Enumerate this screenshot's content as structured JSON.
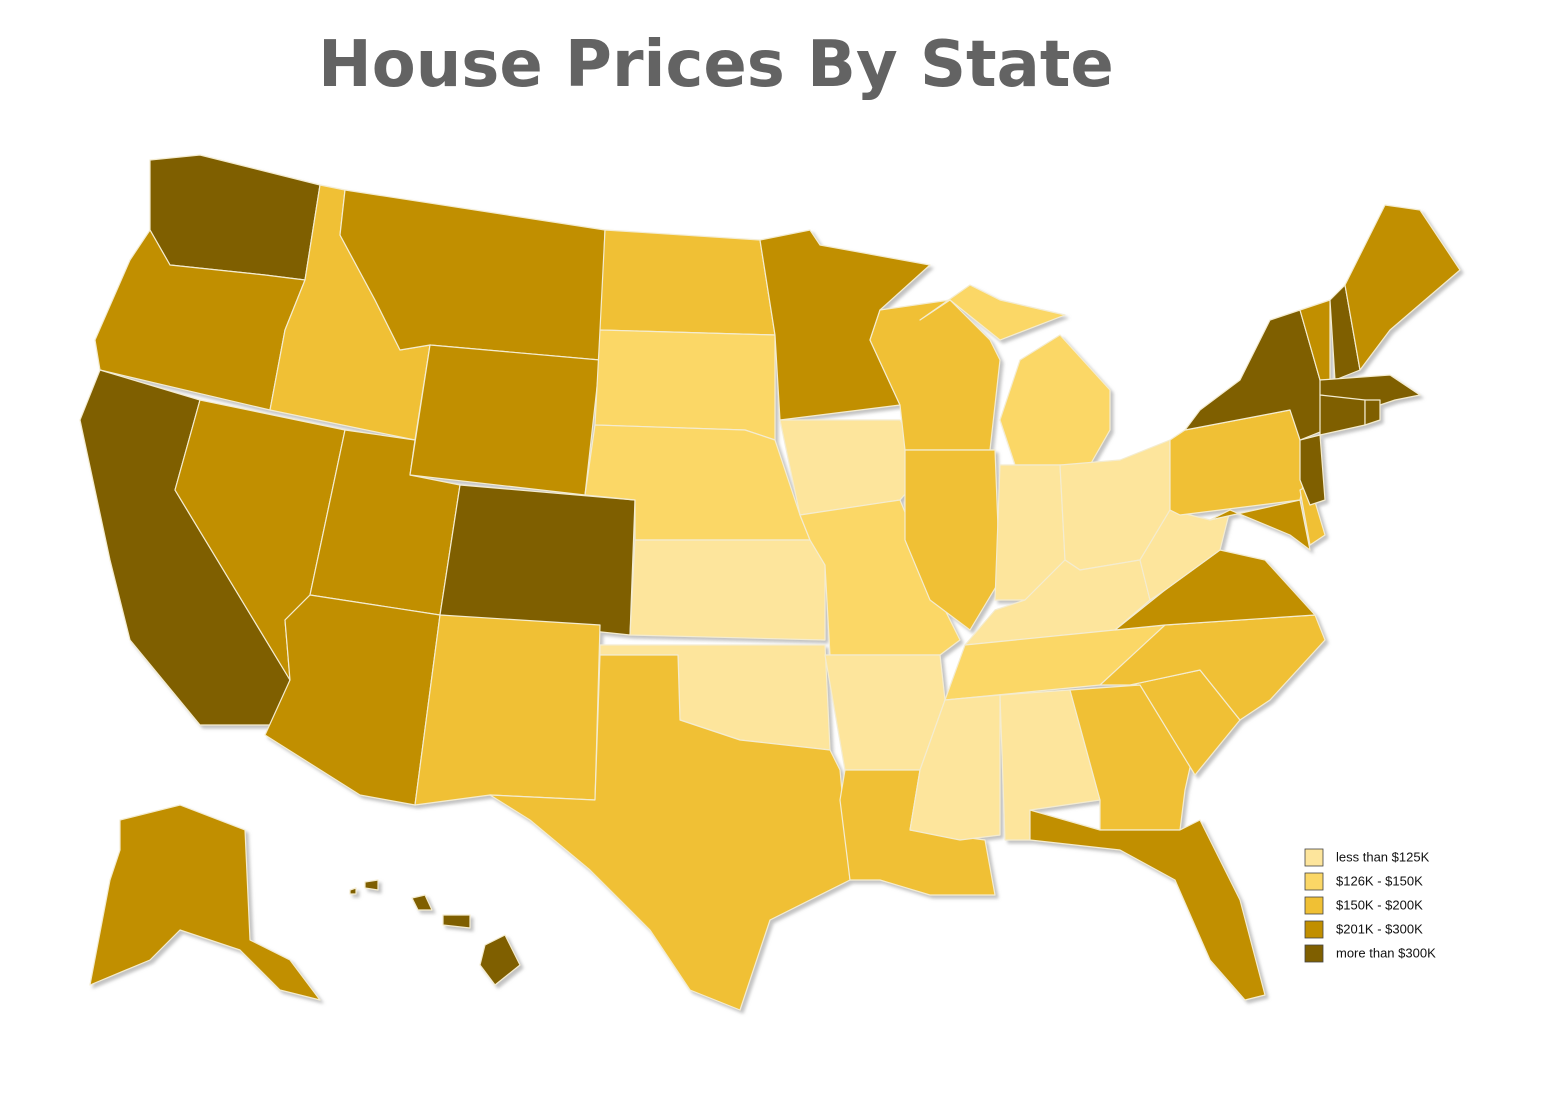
{
  "header": {
    "title": "House Prices By State"
  },
  "legend": [
    {
      "label": "less than $125K",
      "color": "#fde59c"
    },
    {
      "label": "$126K - $150K",
      "color": "#fbd766"
    },
    {
      "label": "$150K - $200K",
      "color": "#f0c034"
    },
    {
      "label": "$201K - $300K",
      "color": "#c18f00"
    },
    {
      "label": "more than $300K",
      "color": "#7f5f00"
    }
  ]
}
